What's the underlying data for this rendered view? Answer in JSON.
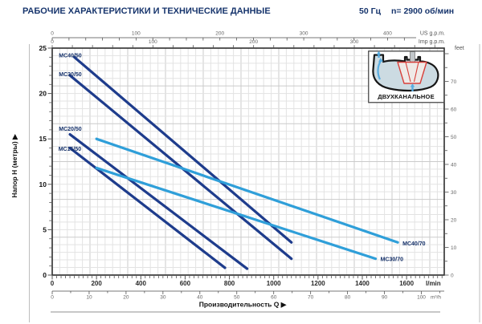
{
  "header": {
    "title": "РАБОЧИЕ ХАРАКТЕРИСТИКИ И ТЕХНИЧЕСКИЕ ДАННЫЕ",
    "frequency": "50 Гц",
    "speed": "n= 2900 об/мин"
  },
  "colors": {
    "navy": "#1e3c8c",
    "light_blue": "#2f9fd9",
    "header_text": "#17356d",
    "impeller_red": "#d9403a",
    "arrow_blue": "#58ace0",
    "casing_fill": "#ccdbe2",
    "tick": "#555555",
    "muted_label": "#666666",
    "dark_label": "#1a1a1a"
  },
  "chart_data": {
    "type": "line",
    "title": "",
    "xlabel": "Производительность Q",
    "ylabel": "Напор H (метры)",
    "x_range_lmin": [
      0,
      1770
    ],
    "y_range_m": [
      0,
      25
    ],
    "grid": "graph-paper",
    "x_axes": [
      {
        "id": "us_gpm",
        "unit": "US g.p.m.",
        "lmin_per_unit": 3.78541,
        "major_ticks": [
          0,
          100,
          200,
          300,
          400
        ],
        "minor_step": 20
      },
      {
        "id": "imp_gpm",
        "unit": "Imp g.p.m.",
        "lmin_per_unit": 4.54609,
        "major_ticks": [
          0,
          100,
          200,
          300
        ],
        "minor_step": 20
      },
      {
        "id": "lmin",
        "unit": "l/min",
        "lmin_per_unit": 1,
        "major_ticks": [
          0,
          200,
          400,
          600,
          800,
          1000,
          1200,
          1400,
          1600
        ],
        "minor_step": 20
      },
      {
        "id": "m3h",
        "unit": "m³/h",
        "lmin_per_unit": 16.6667,
        "major_ticks": [
          0,
          10,
          20,
          30,
          40,
          50,
          60,
          70,
          80,
          90,
          100
        ],
        "minor_step": 5
      }
    ],
    "y_axes": [
      {
        "id": "meters",
        "unit": "метры",
        "m_per_unit": 1,
        "major_ticks": [
          0,
          5,
          10,
          15,
          20,
          25
        ],
        "minor_step": 1
      },
      {
        "id": "feet",
        "unit": "feet",
        "m_per_unit": 0.3048,
        "major_ticks": [
          0,
          10,
          20,
          30,
          40,
          50,
          60,
          70
        ],
        "minor_step": 5
      }
    ],
    "series": [
      {
        "name": "MC40/50",
        "color_key": "navy",
        "points": [
          [
            100,
            24.0
          ],
          [
            1080,
            3.6
          ]
        ],
        "label_q": 30,
        "label_h": 24.2
      },
      {
        "name": "MC30/50",
        "color_key": "navy",
        "points": [
          [
            80,
            22.0
          ],
          [
            1080,
            1.8
          ]
        ],
        "label_q": 30,
        "label_h": 22.15
      },
      {
        "name": "MC20/50",
        "color_key": "navy",
        "points": [
          [
            80,
            15.5
          ],
          [
            880,
            0.7
          ]
        ],
        "label_q": 30,
        "label_h": 16.1
      },
      {
        "name": "MC15/50",
        "color_key": "navy",
        "points": [
          [
            80,
            14.0
          ],
          [
            780,
            0.8
          ]
        ],
        "label_q": 28,
        "label_h": 13.9
      },
      {
        "name": "MC40/70",
        "color_key": "light_blue",
        "points": [
          [
            200,
            15.0
          ],
          [
            1560,
            3.6
          ]
        ],
        "label_q": 1582,
        "label_h": 3.5
      },
      {
        "name": "MC30/70",
        "color_key": "light_blue",
        "points": [
          [
            200,
            11.8
          ],
          [
            1460,
            1.8
          ]
        ],
        "label_q": 1482,
        "label_h": 1.75
      }
    ]
  },
  "inset": {
    "caption": "ДВУХКАНАЛЬНОЕ"
  }
}
